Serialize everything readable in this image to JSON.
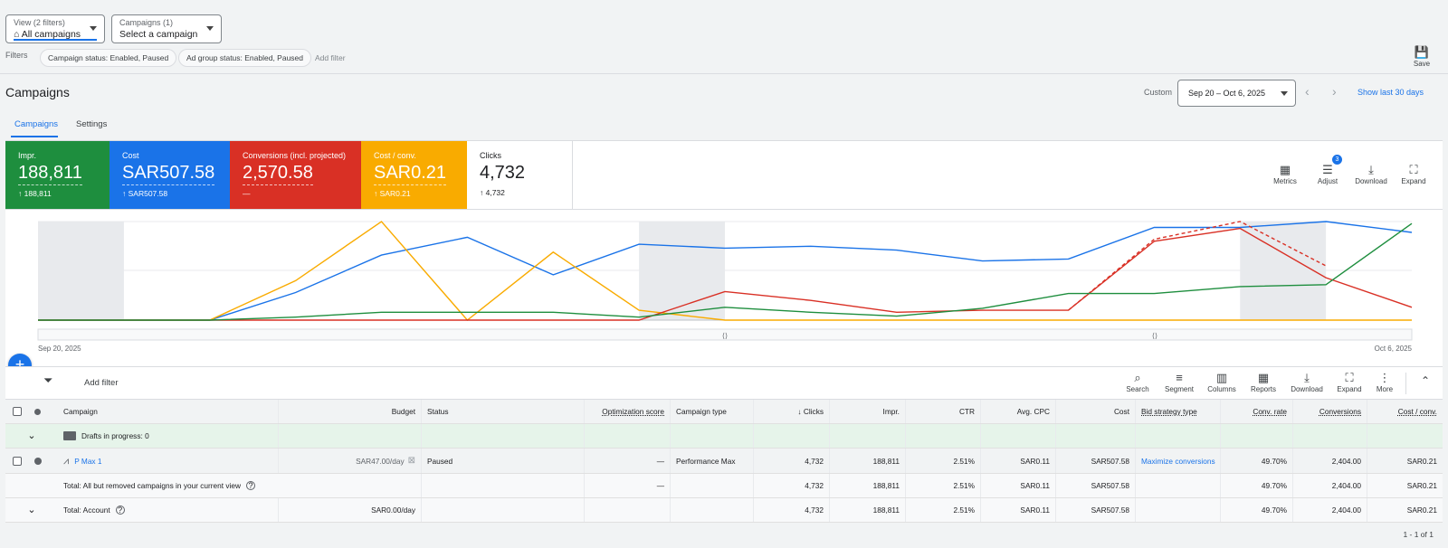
{
  "view_filter": {
    "label": "View (2 filters)",
    "value": "All campaigns"
  },
  "campaign_filter": {
    "label": "Campaigns (1)",
    "value": "Select a campaign"
  },
  "filters": {
    "label": "Filters",
    "chips": [
      "Campaign status: Enabled, Paused",
      "Ad group status: Enabled, Paused"
    ],
    "add": "Add filter"
  },
  "save": "Save",
  "page_title": "Campaigns",
  "date": {
    "custom": "Custom",
    "range": "Sep 20 – Oct 6, 2025",
    "show_last": "Show last 30 days"
  },
  "tabs": [
    "Campaigns",
    "Settings"
  ],
  "tiles": [
    {
      "label": "Impr.",
      "value": "188,811",
      "change": "↑ 188,811",
      "color": "#1e8e3e"
    },
    {
      "label": "Cost",
      "value": "SAR507.58",
      "change": "↑ SAR507.58",
      "color": "#1a73e8"
    },
    {
      "label": "Conversions (incl. projected)",
      "value": "2,570.58",
      "change": "—",
      "color": "#d93025"
    },
    {
      "label": "Cost / conv.",
      "value": "SAR0.21",
      "change": "↑ SAR0.21",
      "color": "#f9ab00"
    },
    {
      "label": "Clicks",
      "value": "4,732",
      "change": "↑ 4,732",
      "color": "#ffffff"
    }
  ],
  "chart_tools": {
    "metrics": "Metrics",
    "adjust": "Adjust",
    "adjust_badge": "3",
    "download": "Download",
    "expand": "Expand"
  },
  "chart_data": {
    "type": "line",
    "x": [
      "Sep 20, 2025",
      "Sep 21",
      "Sep 22",
      "Sep 23",
      "Sep 24",
      "Sep 25",
      "Sep 26",
      "Sep 27",
      "Sep 28",
      "Sep 29",
      "Sep 30",
      "Oct 1",
      "Oct 2",
      "Oct 3",
      "Oct 4",
      "Oct 5",
      "Oct 6, 2025"
    ],
    "xtick_labels": [
      "Sep 20, 2025",
      "Oct 6, 2025"
    ],
    "series": [
      {
        "color": "#1a73e8",
        "values": [
          0,
          0,
          0,
          28,
          66,
          84,
          46,
          77,
          73,
          75,
          71,
          60,
          62,
          94,
          94,
          100,
          89
        ]
      },
      {
        "color": "#f9ab00",
        "values": [
          0,
          0,
          0,
          40,
          100,
          0,
          69,
          10,
          0,
          0,
          0,
          0,
          0,
          0,
          0,
          0,
          0
        ]
      },
      {
        "color": "#d93025",
        "values": [
          0,
          0,
          0,
          0,
          0,
          0,
          0,
          0,
          29,
          20,
          8,
          10,
          10,
          80,
          93,
          43,
          13
        ]
      },
      {
        "color": "#d93025",
        "dashed": true,
        "values": [
          null,
          null,
          null,
          null,
          null,
          null,
          null,
          null,
          null,
          null,
          null,
          null,
          10,
          82,
          100,
          55,
          null
        ]
      },
      {
        "color": "#1e8e3e",
        "values": [
          0,
          0,
          0,
          3,
          8,
          8,
          8,
          3,
          13,
          8,
          4,
          12,
          27,
          27,
          34,
          36,
          98
        ]
      }
    ],
    "shaded_ranges": [
      [
        0,
        1
      ],
      [
        7,
        8
      ],
      [
        14,
        15
      ]
    ],
    "grid": true
  },
  "table_bar": {
    "add_filter": "Add filter",
    "tools": [
      "Search",
      "Segment",
      "Columns",
      "Reports",
      "Download",
      "Expand",
      "More"
    ]
  },
  "columns": [
    "Campaign",
    "Budget",
    "Status",
    "Optimization score",
    "Campaign type",
    "Clicks",
    "Impr.",
    "CTR",
    "Avg. CPC",
    "Cost",
    "Bid strategy type",
    "Conv. rate",
    "Conversions",
    "Cost / conv."
  ],
  "drafts": "Drafts in progress: 0",
  "campaign_row": {
    "name": "P Max 1",
    "budget": "SAR47.00/day",
    "status": "Paused",
    "opt": "—",
    "type": "Performance Max",
    "clicks": "4,732",
    "impr": "188,811",
    "ctr": "2.51%",
    "cpc": "SAR0.11",
    "cost": "SAR507.58",
    "bid": "Maximize conversions",
    "conv_rate": "49.70%",
    "conversions": "2,404.00",
    "cost_conv": "SAR0.21"
  },
  "total_removed": {
    "label": "Total: All but removed campaigns in your current view",
    "opt": "—",
    "clicks": "4,732",
    "impr": "188,811",
    "ctr": "2.51%",
    "cpc": "SAR0.11",
    "cost": "SAR507.58",
    "conv_rate": "49.70%",
    "conversions": "2,404.00",
    "cost_conv": "SAR0.21"
  },
  "total_account": {
    "label": "Total: Account",
    "budget": "SAR0.00/day",
    "clicks": "4,732",
    "impr": "188,811",
    "ctr": "2.51%",
    "cpc": "SAR0.11",
    "cost": "SAR507.58",
    "conv_rate": "49.70%",
    "conversions": "2,404.00",
    "cost_conv": "SAR0.21"
  },
  "pagination": "1 - 1 of 1"
}
